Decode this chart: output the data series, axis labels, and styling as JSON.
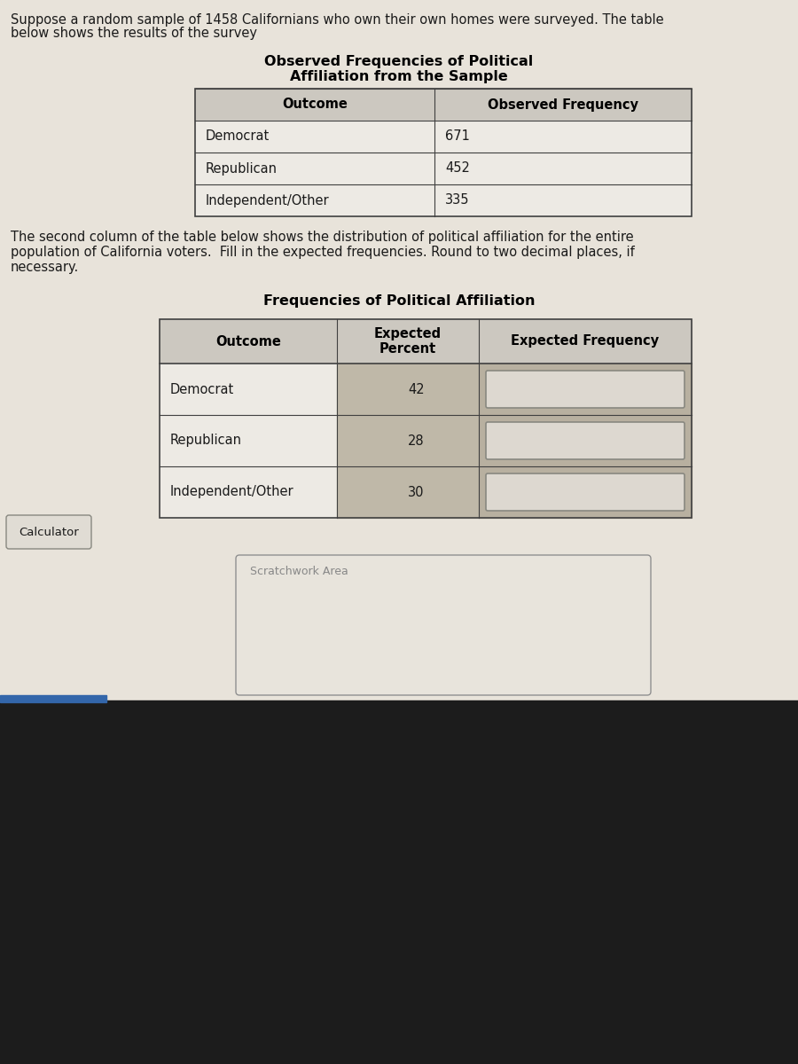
{
  "intro_text_line1": "Suppose a random sample of 1458 Californians who own their own homes were surveyed. The table",
  "intro_text_line2": "below shows the results of the survey",
  "table1_title_line1": "Observed Frequencies of Political",
  "table1_title_line2": "Affiliation from the Sample",
  "table1_headers": [
    "Outcome",
    "Observed Frequency"
  ],
  "table1_rows": [
    [
      "Democrat",
      "671"
    ],
    [
      "Republican",
      "452"
    ],
    [
      "Independent/Other",
      "335"
    ]
  ],
  "middle_text_line1": "The second column of the table below shows the distribution of political affiliation for the entire",
  "middle_text_line2": "population of California voters.  Fill in the expected frequencies. Round to two decimal places, if",
  "middle_text_line3": "necessary.",
  "table2_title": "Frequencies of Political Affiliation",
  "table2_headers_col1": "Outcome",
  "table2_headers_col2": "Expected\nPercent",
  "table2_headers_col3": "Expected Frequency",
  "table2_rows": [
    [
      "Democrat",
      "42"
    ],
    [
      "Republican",
      "28"
    ],
    [
      "Independent/Other",
      "30"
    ]
  ],
  "calculator_label": "Calculator",
  "scratchwork_label": "Scratchwork Area",
  "bg_light": "#ddd8d0",
  "bg_page": "#e8e3da",
  "bg_dark": "#1c1c1c",
  "table1_header_bg": "#ccc8c0",
  "table1_row_bg": "#edeae4",
  "table1_border": "#404040",
  "table2_header_bg": "#ccc8c0",
  "table2_row_col1_bg": "#edeae4",
  "table2_row_col2_bg": "#bfb8a8",
  "table2_row_col3_bg": "#b8b0a0",
  "input_box_bg": "#ddd8d0",
  "input_box_edge": "#888880",
  "calc_btn_bg": "#e0dcd4",
  "calc_btn_edge": "#888880",
  "scratch_bg": "#e8e4dc",
  "scratch_edge": "#909090",
  "text_dark": "#1a1a1a",
  "text_bold": "#000000",
  "text_gray": "#888888",
  "blue_bar": "#3366aa"
}
